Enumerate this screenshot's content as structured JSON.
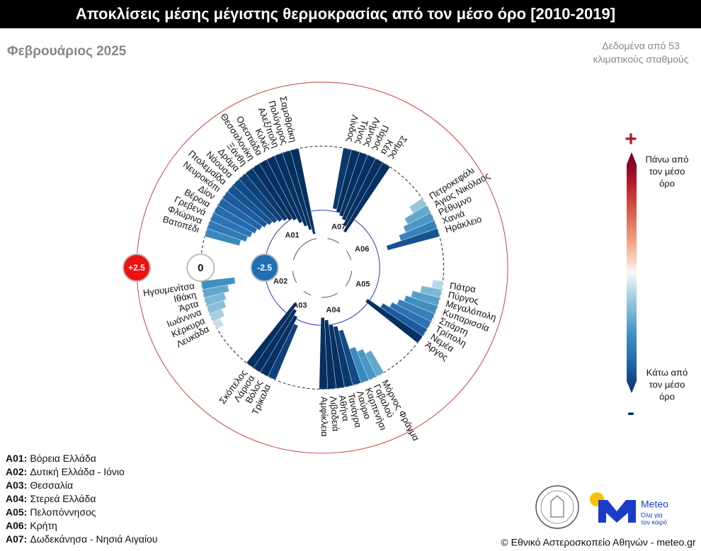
{
  "chart_data": {
    "type": "polar-bar",
    "title": "Αποκλίσεις μέσης μέγιστης θερμοκρασίας από τον μέσο όρο [2010-2019]",
    "subtitle": "Φεβρουάριος 2025",
    "note": [
      "Δεδομένα από 53",
      "κλιματικούς σταθμούς"
    ],
    "rlim": [
      -4.75,
      2.5
    ],
    "rticks": [
      -2.5,
      0,
      {
        "value": 2.5,
        "label": "+2.5"
      }
    ],
    "rtick_colors": [
      "#1f6fb2",
      "#ffffff",
      "#ee1111"
    ],
    "colorscale": [
      "#053061",
      "#2166ac",
      "#4393c3",
      "#92c5de",
      "#f7f7f7",
      "#f4a582",
      "#d6604d",
      "#b2182b",
      "#67001f"
    ],
    "colorbar": {
      "plus": "+",
      "minus": "-",
      "above": [
        "Πάνω από",
        "τον μέσο",
        "όρο"
      ],
      "below": [
        "Κάτω από",
        "τον μέσο",
        "όρο"
      ]
    },
    "groups": [
      {
        "code": "A07",
        "stations": [
          "Λίνδος",
          "Τήνος",
          "Λήμνος",
          "Πάρος",
          "Κέα",
          "Σάμος"
        ],
        "values": [
          -2.4,
          -2.5,
          -2.6,
          -2.7,
          -2.9,
          -3.1
        ]
      },
      {
        "code": "A06",
        "stations": [
          "Πετροκεφάλι",
          "Άγιος Νικόλαος",
          "Ρέθυμνο",
          "Χανιά",
          "Ηράκλειο"
        ],
        "values": [
          -0.6,
          -1.0,
          -1.2,
          -1.5,
          -2.1
        ]
      },
      {
        "code": "A05",
        "stations": [
          "Πάτρα",
          "Πύργος",
          "Μεγαλόπολη",
          "Κυπαρισσία",
          "Σπάρτη",
          "Τρίπολη",
          "Νεμέα",
          "Άργος"
        ],
        "values": [
          -0.4,
          -0.8,
          -1.1,
          -1.3,
          -1.5,
          -1.7,
          -2.0,
          -2.6
        ]
      },
      {
        "code": "A04",
        "stations": [
          "Μόρνος Φράγμα",
          "Γαβαλού",
          "Καρπενήσι",
          "Λαύριο",
          "Τανάγρα",
          "Αθήνα",
          "Λιβαδειά",
          "Αμφίκλεια"
        ],
        "values": [
          -1.0,
          -1.2,
          -1.4,
          -2.2,
          -2.4,
          -2.5,
          -2.7,
          -2.8
        ]
      },
      {
        "code": "A03",
        "stations": [
          "Τρίκαλα",
          "Βόλος",
          "Λάρισα",
          "Σκόπελος"
        ],
        "values": [
          -2.3,
          -2.6,
          -2.8,
          -3.0
        ]
      },
      {
        "code": "A02",
        "stations": [
          "Λευκάδα",
          "Κέρκυρα",
          "Ιωάννινα",
          "Άρτα",
          "Ιθάκη",
          "Ηγουμενίτσα"
        ],
        "values": [
          -0.3,
          -0.5,
          -0.7,
          -0.8,
          -1.0,
          -1.3
        ]
      },
      {
        "code": "A01",
        "stations": [
          "Βατοπέδι",
          "Φλώρινα",
          "Γρεβενά",
          "Βέροια",
          "Δίον",
          "Νευροκόπι",
          "Πτολεμαΐδα",
          "Νάουσα",
          "Δράμα",
          "Ξάνθη",
          "Θεσσαλονίκη",
          "Ορεστιάδα",
          "Κιλκίς",
          "Αλεξ/πολη",
          "Πολύγυρος",
          "Σαμοθράκη"
        ],
        "values": [
          -1.4,
          -1.6,
          -1.7,
          -1.8,
          -1.9,
          -2.0,
          -2.1,
          -2.2,
          -2.3,
          -2.4,
          -2.5,
          -2.6,
          -2.8,
          -3.0,
          -3.2,
          -3.4
        ]
      }
    ],
    "legend": [
      {
        "label": "A01:",
        "name": "Βόρεια Ελλάδα"
      },
      {
        "label": "A02:",
        "name": "Δυτική Ελλάδα - Ιόνιο"
      },
      {
        "label": "A03:",
        "name": "Θεσσαλία"
      },
      {
        "label": "A04:",
        "name": "Στερεά Ελλάδα"
      },
      {
        "label": "A05:",
        "name": "Πελοπόννησος"
      },
      {
        "label": "A06:",
        "name": "Κρήτη"
      },
      {
        "label": "A07:",
        "name": "Δωδεκάνησα - Νησιά Αιγαίου"
      }
    ],
    "logo": {
      "name": "Meteo",
      "tagline": [
        "Όλα για",
        "τον καιρό"
      ]
    },
    "footer": "© Εθνικό Αστεροσκοπείο Αθηνών - meteo.gr"
  }
}
